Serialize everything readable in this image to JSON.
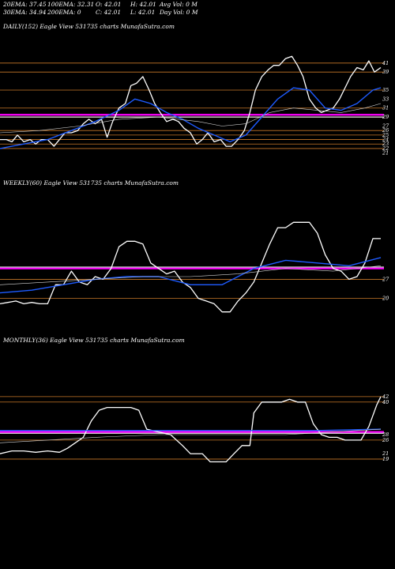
{
  "header": {
    "ema20": "20EMA: 37.45",
    "ema100": "100EMA: 32.31",
    "open": "O: 42.01",
    "high": "H: 42.01",
    "avg_vol": "Avg Vol: 0  M",
    "ema30": "30EMA: 34.94",
    "ema200": "200EMA: 0",
    "close": "C: 42.01",
    "low": "L: 42.01",
    "day_vol": "Day Vol: 0  M"
  },
  "colors": {
    "background": "#000000",
    "price_line": "#ffffff",
    "ema_line": "#1e5bff",
    "level_line": "#c87828",
    "magenta_band": "#ff00ff",
    "white_band": "#ffffff"
  },
  "chart_data": [
    {
      "type": "line",
      "label": "DAILY(152) Eagle   View  531735 charts MunafaSutra.com",
      "ylim": [
        19,
        48
      ],
      "right_ticks": [
        "41",
        "39",
        "35",
        "33",
        "31",
        "29",
        "27",
        "26",
        "25",
        "24",
        "23",
        "22",
        "21"
      ],
      "right_tick_values": [
        41,
        39,
        35,
        33,
        31,
        29,
        27,
        26,
        25,
        24,
        23,
        22,
        21
      ],
      "levels": [
        41,
        39,
        35,
        31,
        29,
        26,
        25,
        24,
        23,
        22
      ],
      "band_magenta": 29.5,
      "band_white": 29.0,
      "series": [
        {
          "role": "price",
          "x": [
            0,
            8,
            15,
            22,
            30,
            38,
            45,
            52,
            60,
            68,
            75,
            82,
            90,
            98,
            105,
            112,
            120,
            128,
            135,
            142,
            150,
            158,
            165,
            172,
            180,
            188,
            195,
            202,
            210,
            218,
            225,
            232,
            240,
            248,
            255,
            262,
            270,
            278,
            285,
            292,
            300,
            308,
            315,
            322,
            330,
            338,
            345,
            352,
            360,
            368,
            375,
            382,
            390,
            398,
            405,
            412,
            420,
            428,
            435,
            442,
            450,
            458,
            465,
            472,
            480
          ],
          "y": [
            24,
            24,
            23.5,
            25,
            23.5,
            24,
            23,
            24,
            24,
            22.5,
            24,
            25.5,
            25.5,
            26,
            27.5,
            28.5,
            27.5,
            28.5,
            24.5,
            28,
            31,
            32,
            36,
            36.5,
            38,
            35,
            32,
            30,
            28,
            28.5,
            28,
            26.5,
            25.5,
            23,
            24,
            25.5,
            23.5,
            24,
            22.5,
            22.5,
            24,
            26,
            30,
            35,
            38,
            39.5,
            40.5,
            40.5,
            42,
            42.5,
            40.5,
            38,
            33,
            31,
            30,
            30.5,
            31,
            33,
            35.5,
            38,
            40,
            39.5,
            41.5,
            39,
            40
          ]
        },
        {
          "role": "ema",
          "x": [
            0,
            30,
            60,
            90,
            120,
            150,
            170,
            190,
            210,
            230,
            250,
            270,
            290,
            310,
            330,
            350,
            370,
            390,
            410,
            430,
            450,
            470,
            480
          ],
          "y": [
            22,
            23,
            24,
            26,
            28,
            30.5,
            33,
            32,
            30,
            28.5,
            26.5,
            25,
            23.5,
            25,
            29,
            33,
            35.5,
            35,
            31,
            30.5,
            32,
            35,
            35.5
          ]
        },
        {
          "role": "ema",
          "x": [
            0,
            50,
            100,
            150,
            200,
            250,
            280,
            310,
            340,
            370,
            400,
            430,
            460,
            480
          ],
          "y": [
            25.5,
            26,
            27,
            28.5,
            29,
            28,
            27,
            27.5,
            30,
            31,
            30.5,
            30,
            31,
            32
          ]
        }
      ]
    },
    {
      "type": "line",
      "label": "WEEKLY(60) Eagle   View  531735 charts MunafaSutra.com",
      "ylim": [
        12,
        60
      ],
      "right_ticks": [
        "27",
        "20"
      ],
      "right_tick_values": [
        27,
        20
      ],
      "levels": [
        27,
        20
      ],
      "band_magenta": 31,
      "band_white": 31.5,
      "series": [
        {
          "role": "price",
          "x": [
            0,
            10,
            20,
            30,
            40,
            50,
            60,
            70,
            80,
            90,
            100,
            110,
            120,
            130,
            140,
            150,
            160,
            170,
            180,
            190,
            200,
            210,
            220,
            230,
            240,
            250,
            260,
            270,
            280,
            290,
            300,
            310,
            320,
            330,
            340,
            350,
            360,
            370,
            380,
            390,
            400,
            410,
            420,
            430,
            440,
            450,
            460,
            470,
            480
          ],
          "y": [
            18,
            18.5,
            19,
            18,
            18.5,
            18,
            18,
            25,
            25,
            30,
            26,
            25,
            28,
            27,
            31,
            39,
            41,
            41,
            40,
            33,
            31,
            29,
            30,
            26,
            24,
            20,
            19,
            18,
            15,
            15,
            19,
            22,
            26,
            33,
            40,
            46,
            46,
            48,
            48,
            48,
            44,
            36,
            31,
            30,
            27,
            28,
            33,
            42,
            42
          ]
        },
        {
          "role": "ema",
          "x": [
            0,
            40,
            80,
            120,
            160,
            200,
            240,
            280,
            320,
            360,
            400,
            440,
            480
          ],
          "y": [
            22,
            23,
            25,
            27,
            28,
            28,
            25,
            25,
            31,
            34,
            33,
            32,
            35
          ]
        },
        {
          "role": "ema",
          "x": [
            0,
            60,
            120,
            180,
            240,
            300,
            360,
            420,
            480
          ],
          "y": [
            25,
            26,
            27,
            28,
            28,
            29,
            31,
            30,
            32
          ]
        }
      ]
    },
    {
      "type": "line",
      "label": "MONTHLY(36) Eagle   View  531735 charts MunafaSutra.com",
      "ylim": [
        12,
        60
      ],
      "right_ticks": [
        "42",
        "40",
        "28",
        "26",
        "21",
        "19"
      ],
      "right_tick_values": [
        42,
        40,
        28,
        26,
        21,
        19
      ],
      "levels": [
        42,
        40,
        26,
        19
      ],
      "band_magenta": 29,
      "band_white": 28.5,
      "series": [
        {
          "role": "price",
          "x": [
            0,
            15,
            30,
            45,
            60,
            75,
            85,
            95,
            105,
            115,
            125,
            135,
            150,
            165,
            175,
            185,
            200,
            215,
            230,
            240,
            255,
            265,
            275,
            285,
            295,
            305,
            315,
            320,
            330,
            345,
            355,
            365,
            375,
            385,
            395,
            405,
            415,
            425,
            435,
            445,
            455,
            465,
            475,
            480
          ],
          "y": [
            21,
            22,
            22,
            21.5,
            22,
            21.5,
            23,
            25,
            27,
            33,
            37,
            38,
            38,
            38,
            37,
            30,
            29,
            28,
            24,
            21,
            21,
            18,
            18,
            18,
            21,
            24,
            24,
            36,
            40,
            40,
            40,
            41,
            40,
            40,
            32,
            28,
            27,
            27,
            26,
            26,
            26,
            31,
            39,
            42
          ]
        },
        {
          "role": "ema",
          "x": [
            0,
            80,
            160,
            240,
            320,
            400,
            480
          ],
          "y": [
            29.5,
            29.5,
            29.5,
            29.5,
            29.5,
            29.5,
            30
          ]
        },
        {
          "role": "ema",
          "x": [
            0,
            60,
            120,
            200,
            280,
            360,
            420,
            480
          ],
          "y": [
            25,
            26,
            27,
            28,
            28,
            28,
            29,
            30
          ]
        }
      ]
    }
  ]
}
